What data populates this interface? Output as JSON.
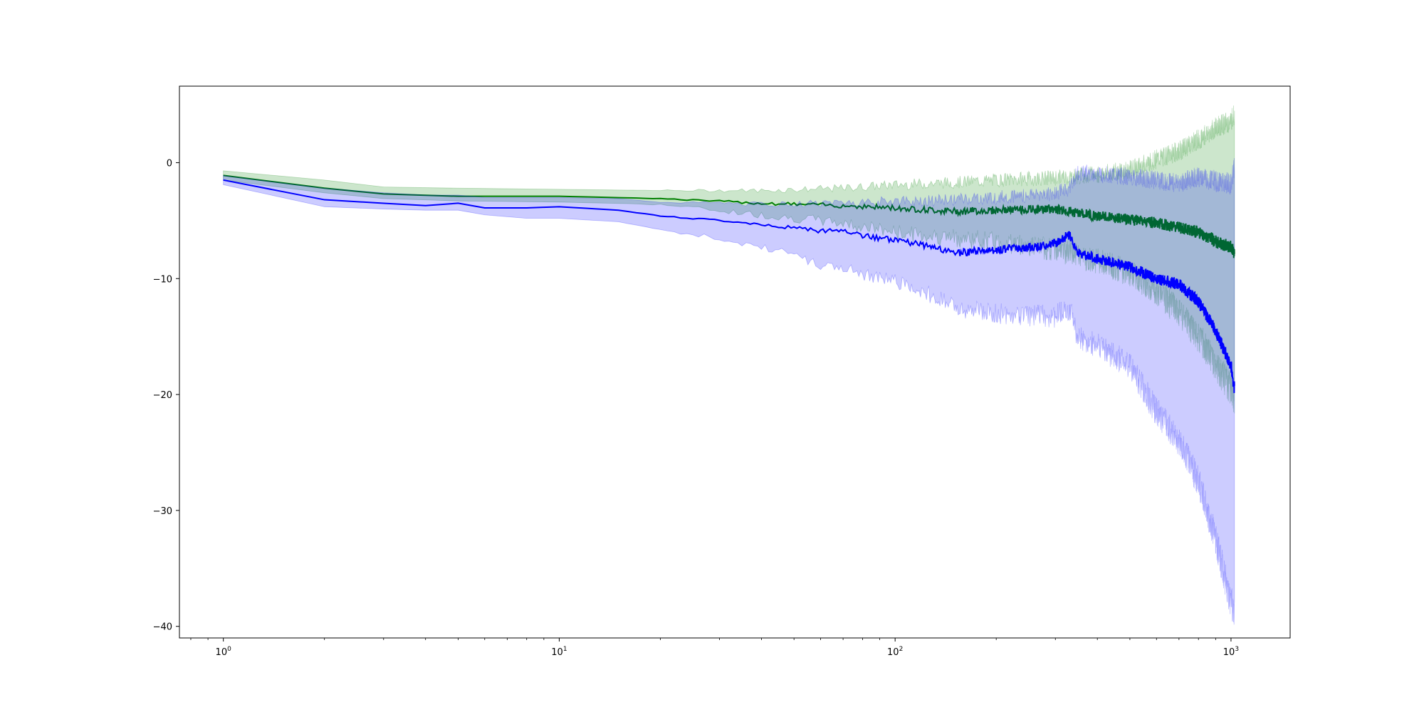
{
  "chart_data": {
    "type": "line",
    "title": "",
    "xlabel": "",
    "ylabel": "",
    "xscale": "log",
    "xlim": [
      0.74,
      1500
    ],
    "ylim": [
      -41,
      6.6
    ],
    "grid": false,
    "legend": "none",
    "x_ticks": [
      {
        "value": 1,
        "base": "10",
        "exp": "0"
      },
      {
        "value": 10,
        "base": "10",
        "exp": "1"
      },
      {
        "value": 100,
        "base": "10",
        "exp": "2"
      },
      {
        "value": 1000,
        "base": "10",
        "exp": "3"
      }
    ],
    "y_ticks": [
      {
        "value": 0,
        "label": "0"
      },
      {
        "value": -10,
        "label": "−10"
      },
      {
        "value": -20,
        "label": "−20"
      },
      {
        "value": -30,
        "label": "−30"
      },
      {
        "value": -40,
        "label": "−40"
      }
    ],
    "series": [
      {
        "color": "#008000",
        "band_color": "#008000",
        "band_opacity": 0.2,
        "x": [
          1,
          2,
          3,
          5,
          10,
          20,
          40,
          70,
          100,
          150,
          200,
          300,
          400,
          500,
          600,
          700,
          800,
          900,
          1000,
          1024
        ],
        "mean": [
          -1.1,
          -2.2,
          -2.7,
          -2.9,
          -2.9,
          -3.1,
          -3.5,
          -3.7,
          -3.9,
          -4.2,
          -4.1,
          -4.0,
          -4.6,
          -4.9,
          -5.2,
          -5.6,
          -6.0,
          -6.8,
          -7.3,
          -7.8
        ],
        "upper": [
          -0.7,
          -1.5,
          -2.1,
          -2.2,
          -2.3,
          -2.4,
          -2.4,
          -2.2,
          -1.9,
          -1.7,
          -1.5,
          -1.3,
          -1.0,
          -0.6,
          0.3,
          1.0,
          2.0,
          3.0,
          3.6,
          4.2
        ],
        "lower": [
          -1.5,
          -2.6,
          -3.1,
          -3.3,
          -3.4,
          -3.6,
          -4.5,
          -5.2,
          -6.0,
          -6.5,
          -6.8,
          -7.5,
          -8.5,
          -9.5,
          -11.0,
          -13.0,
          -15.0,
          -17.5,
          -19.5,
          -20.5
        ]
      },
      {
        "color": "#0000ff",
        "band_color": "#0000ff",
        "band_opacity": 0.2,
        "x": [
          1,
          2,
          3,
          4,
          5,
          6,
          8,
          10,
          15,
          20,
          30,
          40,
          50,
          60,
          70,
          80,
          100,
          120,
          150,
          200,
          250,
          300,
          330,
          350,
          400,
          500,
          600,
          700,
          800,
          900,
          1000,
          1024
        ],
        "mean": [
          -1.5,
          -3.2,
          -3.5,
          -3.7,
          -3.5,
          -3.9,
          -3.9,
          -3.8,
          -4.1,
          -4.6,
          -5.0,
          -5.4,
          -5.6,
          -5.9,
          -5.8,
          -6.3,
          -6.7,
          -7.1,
          -7.8,
          -7.5,
          -7.3,
          -7.0,
          -6.2,
          -7.8,
          -8.3,
          -9.0,
          -10.0,
          -10.5,
          -12.0,
          -14.5,
          -17.5,
          -19.5
        ],
        "upper": [
          -1.1,
          -2.2,
          -2.6,
          -2.8,
          -2.8,
          -3.0,
          -3.0,
          -3.0,
          -3.1,
          -3.4,
          -3.5,
          -3.6,
          -3.6,
          -3.5,
          -3.4,
          -3.4,
          -3.3,
          -3.3,
          -3.2,
          -3.0,
          -2.8,
          -2.6,
          -2.2,
          -0.8,
          -1.0,
          -1.2,
          -1.5,
          -1.8,
          -1.2,
          -1.6,
          -1.8,
          -0.3
        ],
        "lower": [
          -1.9,
          -3.8,
          -4.0,
          -4.1,
          -4.1,
          -4.5,
          -4.8,
          -4.8,
          -5.1,
          -5.8,
          -6.5,
          -7.3,
          -8.0,
          -8.8,
          -9.0,
          -9.6,
          -10.2,
          -11.0,
          -12.5,
          -13.0,
          -13.2,
          -13.3,
          -12.5,
          -15.0,
          -15.8,
          -17.5,
          -21.5,
          -24.0,
          -27.5,
          -32.5,
          -38.0,
          -38.5
        ]
      }
    ]
  }
}
